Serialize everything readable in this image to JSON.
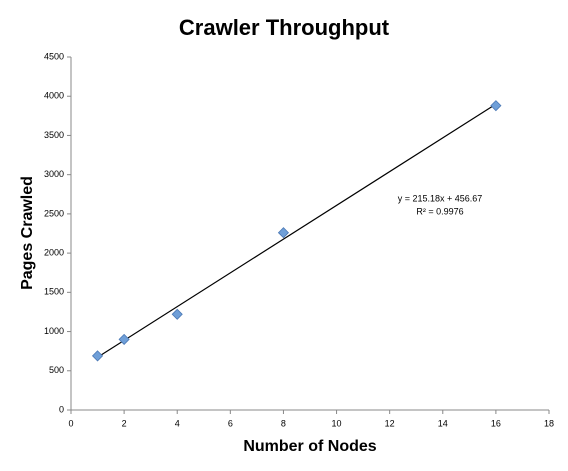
{
  "chart_data": {
    "type": "scatter",
    "title": "Crawler Throughput",
    "x_label": "Number of Nodes",
    "y_label": "Pages Crawled",
    "series": [
      {
        "name": "Pages Crawled",
        "color": "#6f9fd8",
        "x": [
          1,
          2,
          4,
          8,
          16
        ],
        "values": [
          690,
          900,
          1220,
          2260,
          3880
        ]
      }
    ],
    "trendline": {
      "slope": 215.18,
      "intercept": 456.67,
      "equation": "y = 215.18x + 456.67",
      "r_squared": "R² = 0.9976"
    },
    "xlim": [
      0,
      18
    ],
    "xticks": [
      0,
      2,
      4,
      6,
      8,
      10,
      12,
      14,
      16,
      18
    ],
    "ylim": [
      0,
      4500
    ],
    "yticks": [
      0,
      500,
      1000,
      1500,
      2000,
      2500,
      3000,
      3500,
      4000,
      4500
    ],
    "grid": false
  }
}
